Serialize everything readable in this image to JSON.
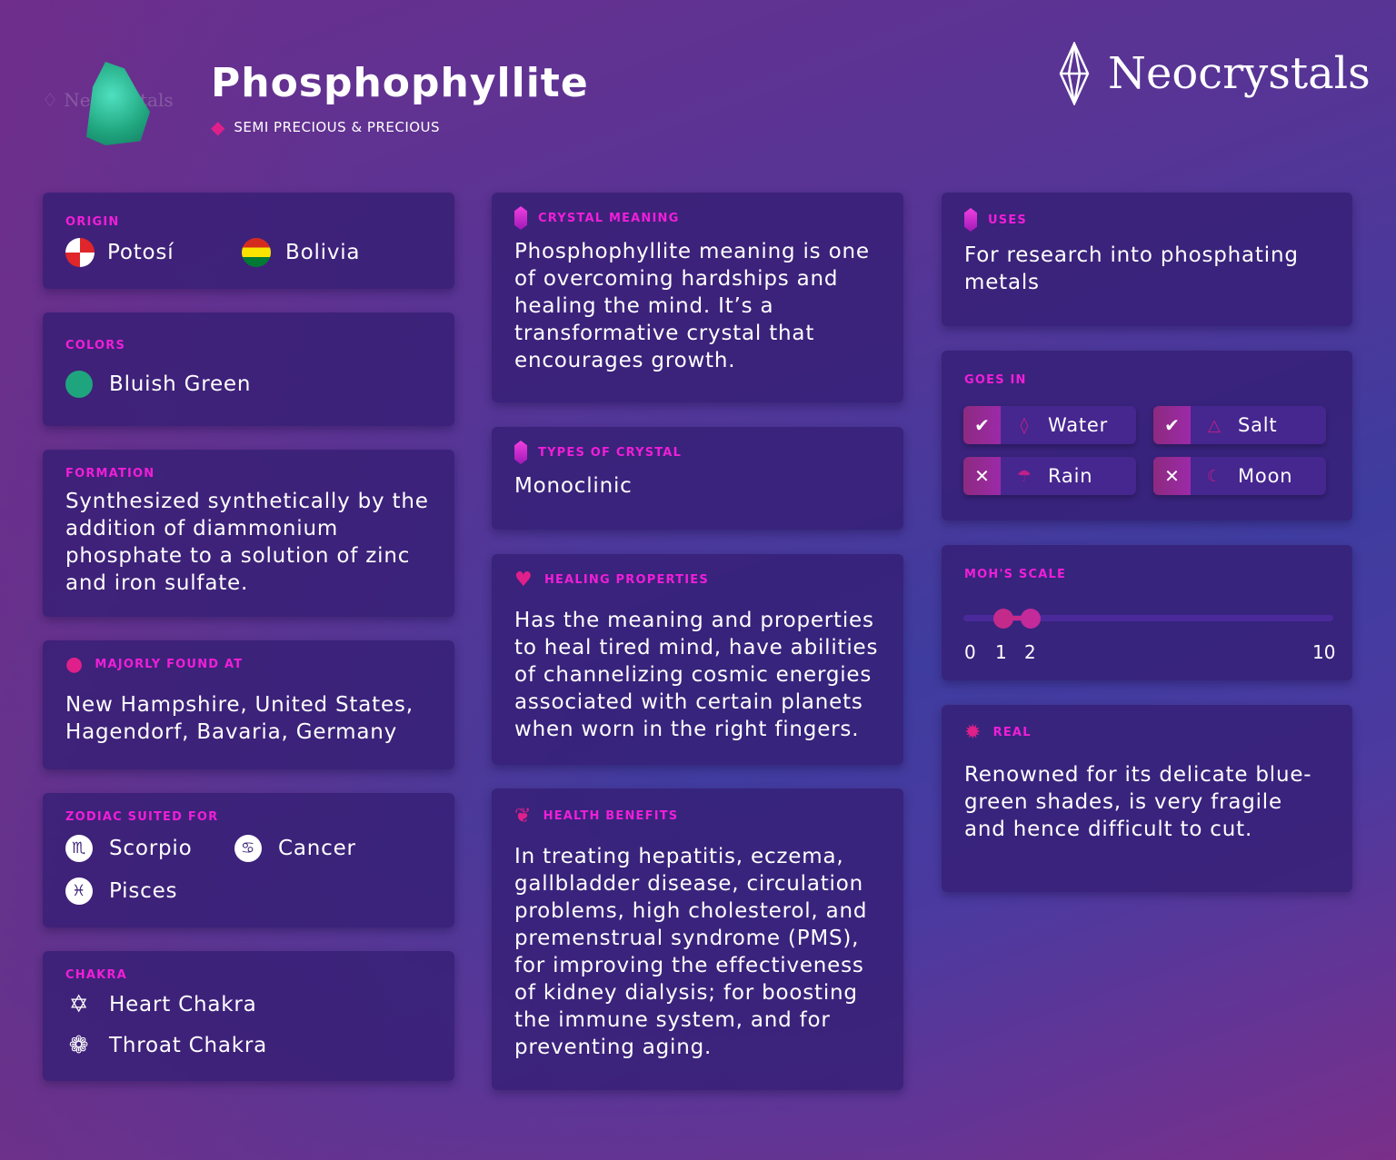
{
  "header": {
    "title": "Phosphophyllite",
    "category": "SEMI PRECIOUS & PRECIOUS",
    "brand": "Neocrystals",
    "watermark": "Neocrystals"
  },
  "colors": {
    "accent": "#f01ed8",
    "swatch": "#1fa57e",
    "card": "#341e73"
  },
  "origin": {
    "label": "ORIGIN",
    "items": [
      {
        "name": "Potosí",
        "icon": "potosi-flag-icon"
      },
      {
        "name": "Bolivia",
        "icon": "bolivia-flag-icon"
      }
    ]
  },
  "crystal_colors": {
    "label": "COLORS",
    "items": [
      {
        "name": "Bluish Green",
        "hex": "#1fa57e"
      }
    ]
  },
  "formation": {
    "label": "FORMATION",
    "text": "Synthesized synthetically by the addition of diammonium phosphate to a solution of zinc and iron sulfate."
  },
  "found": {
    "label": "MAJORLY FOUND AT",
    "text": "New Hampshire, United States, Hagendorf, Bavaria, Germany"
  },
  "zodiac": {
    "label": "ZODIAC SUITED FOR",
    "items": [
      {
        "name": "Scorpio",
        "glyph": "♏"
      },
      {
        "name": "Cancer",
        "glyph": "♋"
      },
      {
        "name": "Pisces",
        "glyph": "♓"
      }
    ]
  },
  "chakra": {
    "label": "CHAKRA",
    "items": [
      {
        "name": "Heart Chakra",
        "icon": "hexagram-icon"
      },
      {
        "name": "Throat Chakra",
        "icon": "lotus-icon"
      }
    ]
  },
  "meaning": {
    "label": "CRYSTAL MEANING",
    "text": "Phosphophyllite meaning is one of overcoming hardships and healing the mind. It’s a transformative crystal that encourages growth."
  },
  "types": {
    "label": "TYPES OF CRYSTAL",
    "text": "Monoclinic"
  },
  "healing": {
    "label": "HEALING PROPERTIES",
    "text": "Has the meaning and properties to heal tired mind, have abilities of channelizing cosmic energies associated with certain planets when worn in the right fingers."
  },
  "health": {
    "label": "HEALTH BENEFITS",
    "text": "In treating hepatitis, eczema, gallbladder disease, circulation problems, high cholesterol, and premenstrual syndrome (PMS), for improving the effectiveness of kidney dialysis; for boosting the immune system, and for preventing aging."
  },
  "uses": {
    "label": "USES",
    "text": "For research into phosphating metals"
  },
  "goes_in": {
    "label": "GOES IN",
    "items": [
      {
        "name": "Water",
        "ok": true,
        "icon": "water-drop-icon"
      },
      {
        "name": "Salt",
        "ok": true,
        "icon": "salt-icon"
      },
      {
        "name": "Rain",
        "ok": false,
        "icon": "rain-cloud-icon"
      },
      {
        "name": "Moon",
        "ok": false,
        "icon": "moon-icon"
      }
    ]
  },
  "mohs": {
    "label": "MOH'S SCALE",
    "min": 0,
    "max": 10,
    "range": [
      1,
      2
    ],
    "ticks": [
      "0",
      "1",
      "2",
      "10"
    ]
  },
  "real": {
    "label": "REAL",
    "text": "Renowned for its delicate blue-green shades, is very fragile and hence difficult to cut."
  }
}
